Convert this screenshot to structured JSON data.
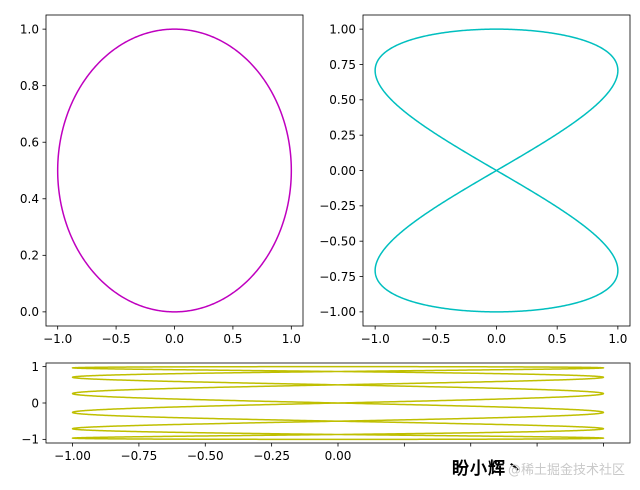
{
  "chart_data": [
    {
      "type": "line",
      "panel": "top-left",
      "curve": "x = sin(t), y = sin(t/2)^2",
      "color": "#bf00bf",
      "xlim": [
        -1.1,
        1.1
      ],
      "ylim": [
        -0.05,
        1.05
      ],
      "x_ticks": [
        -1.0,
        -0.5,
        0.0,
        0.5,
        1.0
      ],
      "x_tick_labels": [
        "−1.0",
        "−0.5",
        "0.0",
        "0.5",
        "1.0"
      ],
      "y_ticks": [
        0.0,
        0.2,
        0.4,
        0.6,
        0.8,
        1.0
      ],
      "y_tick_labels": [
        "0.0",
        "0.2",
        "0.4",
        "0.6",
        "0.8",
        "1.0"
      ],
      "title": "",
      "xlabel": "",
      "ylabel": "",
      "grid": false
    },
    {
      "type": "line",
      "panel": "top-right",
      "curve": "x = sin(t), y = cos(t/2)",
      "color": "#00bfbf",
      "xlim": [
        -1.1,
        1.1
      ],
      "ylim": [
        -1.1,
        1.1
      ],
      "x_ticks": [
        -1.0,
        -0.5,
        0.0,
        0.5,
        1.0
      ],
      "x_tick_labels": [
        "−1.0",
        "−0.5",
        "0.0",
        "0.5",
        "1.0"
      ],
      "y_ticks": [
        -1.0,
        -0.75,
        -0.5,
        -0.25,
        0.0,
        0.25,
        0.5,
        0.75,
        1.0
      ],
      "y_tick_labels": [
        "−1.00",
        "−0.75",
        "−0.50",
        "−0.25",
        "0.00",
        "0.25",
        "0.50",
        "0.75",
        "1.00"
      ],
      "title": "",
      "xlabel": "",
      "ylabel": "",
      "grid": false
    },
    {
      "type": "line",
      "panel": "bottom",
      "curve": "x = sin(t), y = sin(t/6)",
      "color": "#bfbf00",
      "xlim": [
        -1.1,
        1.1
      ],
      "ylim": [
        -1.1,
        1.1
      ],
      "x_ticks": [
        -1.0,
        -0.75,
        -0.5,
        -0.25,
        0.0,
        0.25,
        0.5,
        0.75,
        1.0
      ],
      "x_tick_labels": [
        "−1.00",
        "−0.75",
        "−0.50",
        "−0.25",
        "0.00",
        "",
        "",
        "",
        ""
      ],
      "y_ticks": [
        -1,
        0,
        1
      ],
      "y_tick_labels": [
        "−1",
        "0",
        "1"
      ],
      "title": "",
      "xlabel": "",
      "ylabel": "",
      "grid": false
    }
  ],
  "watermark": {
    "main": "盼小辉丶",
    "sub": "@稀土掘金技术社区"
  }
}
